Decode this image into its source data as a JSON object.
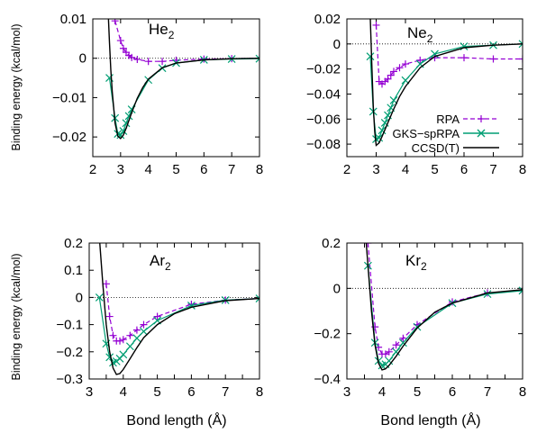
{
  "figure": {
    "ylabel": "Binding energy (kcal/mol)",
    "xlabel": "Bond length (Å)"
  },
  "legend": {
    "location": "inside-lower-right (Ne2 panel)",
    "entries": [
      {
        "label": "RPA",
        "color": "#9400d3",
        "style": "dashed line with + markers"
      },
      {
        "label": "GKS−spRPA",
        "color": "#009e73",
        "style": "solid line with x markers"
      },
      {
        "label": "CCSD(T)",
        "color": "#000000",
        "style": "solid line"
      }
    ]
  },
  "chart_data": [
    {
      "type": "line",
      "title": "He",
      "title_subscript": "2",
      "xlim": [
        2,
        8
      ],
      "ylim": [
        -0.025,
        0.01
      ],
      "xticks": [
        "2",
        "3",
        "4",
        "5",
        "6",
        "7",
        "8"
      ],
      "yticks": [
        "0.01",
        "0",
        "−0.01",
        "−0.02"
      ],
      "ytick_values": [
        0.01,
        0,
        -0.01,
        -0.02
      ],
      "series": [
        {
          "name": "RPA",
          "x": [
            2.8,
            3.0,
            3.1,
            3.2,
            3.3,
            3.4,
            3.6,
            4.0,
            4.5,
            5.0,
            6.0,
            7.0,
            8.0
          ],
          "y": [
            0.0095,
            0.0045,
            0.0025,
            0.0015,
            0.0007,
            0.0002,
            -0.0003,
            -0.0008,
            -0.0008,
            -0.0005,
            -0.0002,
            -0.0001,
            0.0
          ]
        },
        {
          "name": "GKS−spRPA",
          "x": [
            2.6,
            2.8,
            2.9,
            3.0,
            3.1,
            3.2,
            3.3,
            3.4,
            4.0,
            4.5,
            5.0,
            6.0,
            7.0,
            8.0
          ],
          "y": [
            -0.005,
            -0.0152,
            -0.0192,
            -0.0195,
            -0.0185,
            -0.0165,
            -0.0147,
            -0.013,
            -0.0055,
            -0.0025,
            -0.0012,
            -0.0004,
            -0.0002,
            -0.0001
          ]
        },
        {
          "name": "CCSD(T)",
          "x": [
            2.55,
            2.6,
            2.65,
            2.7,
            2.8,
            2.9,
            3.0,
            3.1,
            3.2,
            3.4,
            3.6,
            3.8,
            4.0,
            4.5,
            5.0,
            6.0,
            7.0,
            8.0
          ],
          "y": [
            0.012,
            0.004,
            -0.003,
            -0.0085,
            -0.0165,
            -0.0198,
            -0.0204,
            -0.0195,
            -0.0178,
            -0.0138,
            -0.0102,
            -0.0074,
            -0.0053,
            -0.0024,
            -0.0012,
            -0.0004,
            -0.0001,
            0.0
          ]
        }
      ]
    },
    {
      "type": "line",
      "title": "Ne",
      "title_subscript": "2",
      "xlim": [
        2,
        8
      ],
      "ylim": [
        -0.09,
        0.02
      ],
      "xticks": [
        "2",
        "3",
        "4",
        "5",
        "6",
        "7",
        "8"
      ],
      "yticks": [
        "0.02",
        "0",
        "−0.02",
        "−0.04",
        "−0.06",
        "−0.08"
      ],
      "ytick_values": [
        0.02,
        0,
        -0.02,
        -0.04,
        -0.06,
        -0.08
      ],
      "series": [
        {
          "name": "RPA",
          "x": [
            3.0,
            3.1,
            3.2,
            3.3,
            3.4,
            3.5,
            3.6,
            3.8,
            4.0,
            4.5,
            5.0,
            6.0,
            7.0,
            8.0
          ],
          "y": [
            0.015,
            -0.03,
            -0.032,
            -0.03,
            -0.028,
            -0.025,
            -0.022,
            -0.019,
            -0.016,
            -0.013,
            -0.011,
            -0.011,
            -0.012,
            -0.012
          ]
        },
        {
          "name": "GKS−spRPA",
          "x": [
            2.8,
            2.9,
            3.0,
            3.1,
            3.2,
            3.3,
            3.4,
            3.5,
            3.6,
            4.0,
            4.5,
            5.0,
            6.0,
            7.0,
            8.0
          ],
          "y": [
            -0.01,
            -0.054,
            -0.076,
            -0.075,
            -0.069,
            -0.063,
            -0.057,
            -0.051,
            -0.045,
            -0.029,
            -0.016,
            -0.008,
            -0.002,
            -0.001,
            0.0
          ]
        },
        {
          "name": "CCSD(T)",
          "x": [
            2.8,
            2.85,
            2.9,
            2.95,
            3.0,
            3.1,
            3.2,
            3.4,
            3.6,
            3.8,
            4.0,
            4.5,
            5.0,
            6.0,
            7.0,
            8.0
          ],
          "y": [
            0.02,
            -0.015,
            -0.05,
            -0.07,
            -0.081,
            -0.079,
            -0.074,
            -0.063,
            -0.052,
            -0.042,
            -0.034,
            -0.019,
            -0.01,
            -0.003,
            -0.001,
            0.0
          ]
        }
      ]
    },
    {
      "type": "line",
      "title": "Ar",
      "title_subscript": "2",
      "xlim": [
        3,
        8
      ],
      "ylim": [
        -0.3,
        0.2
      ],
      "xticks": [
        "3",
        "3.5",
        "4",
        "4.5",
        "5",
        "5.5",
        "6",
        "6.5",
        "7",
        "7.5",
        "8"
      ],
      "xtick_labels_shown": [
        "3",
        "4",
        "5",
        "6",
        "7",
        "8"
      ],
      "yticks": [
        "0.2",
        "0.1",
        "0",
        "−0.1",
        "−0.2",
        "−0.3"
      ],
      "ytick_values": [
        0.2,
        0.1,
        0,
        -0.1,
        -0.2,
        -0.3
      ],
      "series": [
        {
          "name": "RPA",
          "x": [
            3.5,
            3.6,
            3.7,
            3.8,
            3.9,
            4.0,
            4.2,
            4.4,
            4.6,
            5.0,
            6.0,
            7.0,
            8.0
          ],
          "y": [
            0.05,
            -0.07,
            -0.14,
            -0.16,
            -0.16,
            -0.155,
            -0.14,
            -0.12,
            -0.1,
            -0.07,
            -0.025,
            -0.01,
            -0.004
          ]
        },
        {
          "name": "GKS−spRPA",
          "x": [
            3.3,
            3.5,
            3.6,
            3.7,
            3.8,
            3.9,
            4.0,
            4.2,
            4.4,
            4.6,
            5.0,
            6.0,
            7.0,
            8.0
          ],
          "y": [
            0.0,
            -0.17,
            -0.22,
            -0.24,
            -0.235,
            -0.225,
            -0.21,
            -0.18,
            -0.15,
            -0.125,
            -0.085,
            -0.03,
            -0.01,
            -0.004
          ]
        },
        {
          "name": "CCSD(T)",
          "x": [
            3.3,
            3.4,
            3.5,
            3.6,
            3.7,
            3.8,
            3.9,
            4.0,
            4.2,
            4.4,
            4.6,
            5.0,
            5.5,
            6.0,
            7.0,
            8.0
          ],
          "y": [
            0.22,
            0.05,
            -0.1,
            -0.2,
            -0.26,
            -0.283,
            -0.28,
            -0.265,
            -0.225,
            -0.185,
            -0.148,
            -0.1,
            -0.06,
            -0.036,
            -0.012,
            -0.004
          ]
        }
      ]
    },
    {
      "type": "line",
      "title": "Kr",
      "title_subscript": "2",
      "xlim": [
        3,
        8
      ],
      "ylim": [
        -0.4,
        0.2
      ],
      "xticks": [
        "3",
        "3.5",
        "4",
        "4.5",
        "5",
        "5.5",
        "6",
        "6.5",
        "7",
        "7.5",
        "8"
      ],
      "xtick_labels_shown": [
        "3",
        "4",
        "5",
        "6",
        "7",
        "8"
      ],
      "yticks": [
        "0.2",
        "0",
        "−0.2",
        "−0.4"
      ],
      "ytick_values": [
        0.2,
        0,
        -0.2,
        -0.4
      ],
      "series": [
        {
          "name": "RPA",
          "x": [
            3.6,
            3.8,
            3.9,
            4.0,
            4.1,
            4.2,
            4.4,
            4.6,
            5.0,
            6.0,
            7.0,
            8.0
          ],
          "y": [
            0.2,
            -0.17,
            -0.26,
            -0.29,
            -0.29,
            -0.28,
            -0.25,
            -0.22,
            -0.16,
            -0.06,
            -0.02,
            -0.01
          ]
        },
        {
          "name": "GKS−spRPA",
          "x": [
            3.6,
            3.8,
            3.9,
            4.0,
            4.1,
            4.2,
            4.4,
            4.6,
            5.0,
            6.0,
            7.0,
            8.0
          ],
          "y": [
            0.1,
            -0.24,
            -0.32,
            -0.34,
            -0.335,
            -0.32,
            -0.28,
            -0.24,
            -0.17,
            -0.065,
            -0.025,
            -0.01
          ]
        },
        {
          "name": "CCSD(T)",
          "x": [
            3.5,
            3.6,
            3.7,
            3.8,
            3.9,
            4.0,
            4.1,
            4.2,
            4.4,
            4.6,
            5.0,
            5.5,
            6.0,
            7.0,
            8.0
          ],
          "y": [
            0.3,
            0.1,
            -0.1,
            -0.25,
            -0.33,
            -0.36,
            -0.355,
            -0.34,
            -0.3,
            -0.255,
            -0.175,
            -0.105,
            -0.065,
            -0.02,
            -0.006
          ]
        }
      ]
    }
  ]
}
